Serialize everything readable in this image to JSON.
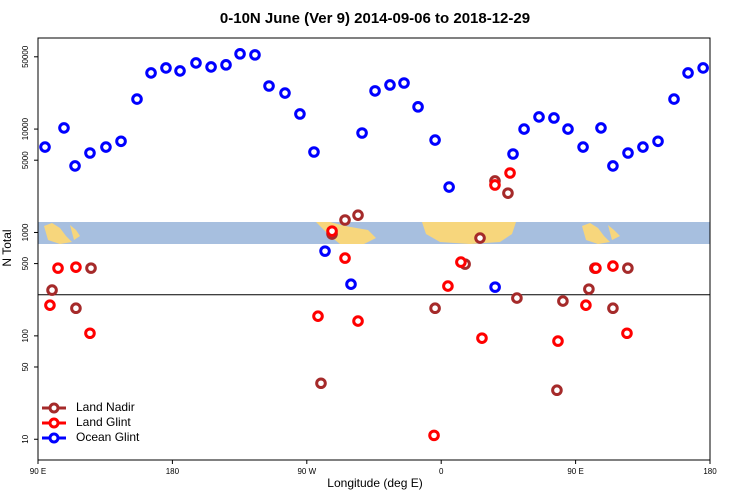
{
  "chart_data": {
    "type": "scatter",
    "title": "0-10N June (Ver 9)   2014-09-06 to 2018-12-29",
    "xlabel": "Longitude (deg E)",
    "ylabel": "N Total",
    "xlim": [
      90,
      540
    ],
    "xticks": [
      {
        "value": 90,
        "label": "90 E"
      },
      180,
      {
        "value": 270,
        "label": "90 W"
      },
      {
        "value": 360,
        "label": "0"
      },
      {
        "value": 450,
        "label": "90 E"
      },
      {
        "value": 540,
        "label": "180"
      }
    ],
    "ylim": [
      6.3,
      76000
    ],
    "yticks": [
      10,
      50,
      100,
      500,
      1000,
      5000,
      10000,
      50000
    ],
    "log_y": true,
    "hline": 250,
    "legend": "bottom-left",
    "series": [
      {
        "name": "Land Nadir",
        "color": "#a52a2a",
        "x": [
          99.4,
          115.4,
          125.5,
          279.5,
          286.9,
          295.6,
          304.3,
          355.9,
          376,
          386,
          396,
          404.7,
          410.7,
          437.5,
          441.5,
          458.9,
          462.9,
          475,
          485
        ],
        "values": [
          277,
          185,
          452,
          34.8,
          966,
          1320,
          1470,
          185,
          494,
          883,
          3150,
          2400,
          232,
          29.8,
          217,
          283,
          452,
          185,
          452
        ]
      },
      {
        "name": "Land Glint",
        "color": "#ff0000",
        "x": [
          98,
          103.4,
          115.4,
          124.8,
          277.5,
          286.9,
          295.6,
          304.3,
          355.2,
          364.5,
          373.2,
          387.3,
          396,
          406.1,
          438.2,
          456.9,
          463.6,
          475,
          484.4
        ],
        "values": [
          198,
          452,
          462,
          106,
          155,
          1030,
          565,
          139,
          10.9,
          303,
          517,
          95,
          2880,
          3760,
          89,
          198,
          452,
          473,
          106
        ]
      },
      {
        "name": "Ocean Glint",
        "color": "#0000ff",
        "x": [
          94.7,
          107.4,
          114.8,
          124.8,
          135.5,
          145.6,
          156.3,
          165.7,
          175.7,
          185.1,
          195.8,
          205.9,
          215.9,
          225.3,
          235.3,
          244.7,
          255.4,
          265.4,
          274.8,
          282.2,
          299.6,
          307,
          315.7,
          325.7,
          335.1,
          344.5,
          355.9,
          365.3,
          396.1,
          408.1,
          415.5,
          425.5,
          435.5,
          444.9,
          455,
          467,
          475,
          485.1,
          495.1,
          505.2,
          515.9,
          525.3,
          535.4
        ],
        "values": [
          6700,
          10260,
          4400,
          5870,
          6700,
          7620,
          19500,
          34900,
          39000,
          36500,
          43600,
          39900,
          41800,
          53400,
          52200,
          26100,
          22300,
          14000,
          6000,
          660,
          316,
          9160,
          23400,
          26700,
          27900,
          16400,
          7830,
          2750,
          296,
          5740,
          10000,
          13100,
          12800,
          10000,
          6700,
          10260,
          4400,
          5870,
          6700,
          7620,
          19500,
          34900,
          39000
        ]
      }
    ]
  }
}
